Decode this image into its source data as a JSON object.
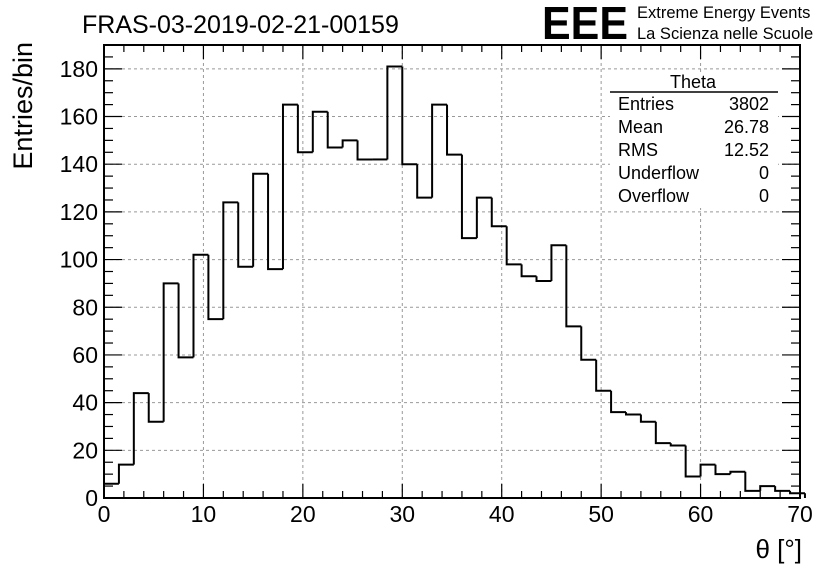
{
  "chart_data": {
    "type": "bar",
    "title": "FRAS-03-2019-02-21-00159",
    "xlabel": "θ [°]",
    "ylabel": "Entries/bin",
    "xlim": [
      0,
      70
    ],
    "ylim": [
      0,
      190
    ],
    "bin_width": 1.5,
    "x_ticks": [
      0,
      10,
      20,
      30,
      40,
      50,
      60,
      70
    ],
    "y_ticks": [
      0,
      20,
      40,
      60,
      80,
      100,
      120,
      140,
      160,
      180
    ],
    "grid": true,
    "values": [
      6,
      14,
      44,
      32,
      90,
      59,
      102,
      75,
      124,
      97,
      136,
      96,
      165,
      145,
      162,
      147,
      150,
      142,
      142,
      181,
      140,
      126,
      165,
      144,
      109,
      126,
      114,
      98,
      93,
      91,
      106,
      72,
      58,
      45,
      36,
      35,
      32,
      23,
      22,
      9,
      14,
      10,
      11,
      3,
      5,
      3,
      2
    ]
  },
  "stats_box": {
    "title": "Theta",
    "rows": [
      {
        "label": "Entries",
        "value": "3802"
      },
      {
        "label": "Mean",
        "value": "26.78"
      },
      {
        "label": "RMS",
        "value": "12.52"
      },
      {
        "label": "Underflow",
        "value": "0"
      },
      {
        "label": "Overflow",
        "value": "0"
      }
    ]
  },
  "logo": {
    "mark": "EEE",
    "line1": "Extreme Energy Events",
    "line2": "La Scienza nelle Scuole",
    "color": "#1a1aff"
  }
}
